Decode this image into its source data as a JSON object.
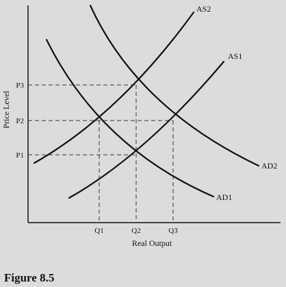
{
  "figure": {
    "caption": "Figure 8.5",
    "x_axis_label": "Real Output",
    "y_axis_label": "Price Level",
    "x_ticks": [
      "Q1",
      "Q2",
      "Q3"
    ],
    "y_ticks": [
      "P3",
      "P2",
      "P1"
    ],
    "curves": {
      "as1": "AS1",
      "as2": "AS2",
      "ad1": "AD1",
      "ad2": "AD2"
    },
    "line_color": "#111111",
    "guide_color": "#333333",
    "background": "#dcdcdc"
  }
}
